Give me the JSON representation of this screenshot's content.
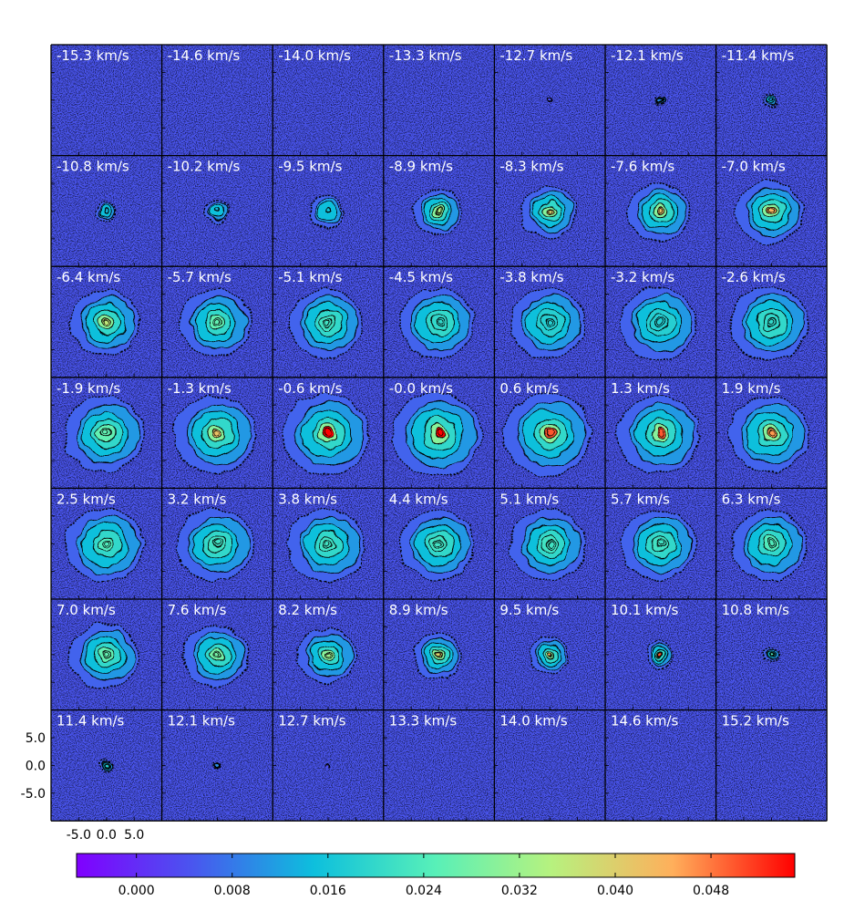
{
  "chart_data": {
    "type": "heatmap",
    "description_of_layout": "",
    "panel_labels": [
      [
        "-15.3 km/s",
        "-14.6 km/s",
        "-14.0 km/s",
        "-13.3 km/s",
        "-12.7 km/s",
        "-12.1 km/s",
        "-11.4 km/s"
      ],
      [
        "-10.8 km/s",
        "-10.2 km/s",
        "-9.5 km/s",
        "-8.9 km/s",
        "-8.3 km/s",
        "-7.6 km/s",
        "-7.0 km/s"
      ],
      [
        "-6.4 km/s",
        "-5.7 km/s",
        "-5.1 km/s",
        "-4.5 km/s",
        "-3.8 km/s",
        "-3.2 km/s",
        "-2.6 km/s"
      ],
      [
        "-1.9 km/s",
        "-1.3 km/s",
        "-0.6 km/s",
        "-0.0 km/s",
        "0.6 km/s",
        "1.3 km/s",
        "1.9 km/s"
      ],
      [
        "2.5 km/s",
        "3.2 km/s",
        "3.8 km/s",
        "4.4 km/s",
        "5.1 km/s",
        "5.7 km/s",
        "6.3 km/s"
      ],
      [
        "7.0 km/s",
        "7.6 km/s",
        "8.2 km/s",
        "8.9 km/s",
        "9.5 km/s",
        "10.1 km/s",
        "10.8 km/s"
      ],
      [
        "11.4 km/s",
        "12.1 km/s",
        "12.7 km/s",
        "13.3 km/s",
        "14.0 km/s",
        "14.6 km/s",
        "15.2 km/s"
      ]
    ],
    "velocities_kms": [
      [
        -15.3,
        -14.6,
        -14.0,
        -13.3,
        -12.7,
        -12.1,
        -11.4
      ],
      [
        -10.8,
        -10.2,
        -9.5,
        -8.9,
        -8.3,
        -7.6,
        -7.0
      ],
      [
        -6.4,
        -5.7,
        -5.1,
        -4.5,
        -3.8,
        -3.2,
        -2.6
      ],
      [
        -1.9,
        -1.3,
        -0.6,
        -0.0,
        0.6,
        1.3,
        1.9
      ],
      [
        2.5,
        3.2,
        3.8,
        4.4,
        5.1,
        5.7,
        6.3
      ],
      [
        7.0,
        7.6,
        8.2,
        8.9,
        9.5,
        10.1,
        10.8
      ],
      [
        11.4,
        12.1,
        12.7,
        13.3,
        14.0,
        14.6,
        15.2
      ]
    ],
    "emission_extent": [
      [
        0,
        0,
        0,
        0,
        0.02,
        0.1,
        0.16
      ],
      [
        0.22,
        0.26,
        0.38,
        0.52,
        0.6,
        0.66,
        0.72
      ],
      [
        0.74,
        0.76,
        0.78,
        0.8,
        0.8,
        0.82,
        0.84
      ],
      [
        0.86,
        0.88,
        0.92,
        0.96,
        0.94,
        0.88,
        0.86
      ],
      [
        0.84,
        0.82,
        0.82,
        0.8,
        0.8,
        0.8,
        0.8
      ],
      [
        0.74,
        0.7,
        0.62,
        0.52,
        0.42,
        0.3,
        0.18
      ],
      [
        0.14,
        0.08,
        0.03,
        0,
        0,
        0,
        0
      ]
    ],
    "peak_value": [
      [
        0.003,
        0.003,
        0.003,
        0.003,
        0.004,
        0.01,
        0.012
      ],
      [
        0.014,
        0.014,
        0.016,
        0.034,
        0.04,
        0.042,
        0.044
      ],
      [
        0.036,
        0.026,
        0.022,
        0.02,
        0.018,
        0.018,
        0.02
      ],
      [
        0.026,
        0.042,
        0.055,
        0.055,
        0.05,
        0.05,
        0.046
      ],
      [
        0.024,
        0.022,
        0.022,
        0.022,
        0.022,
        0.022,
        0.024
      ],
      [
        0.026,
        0.028,
        0.032,
        0.04,
        0.044,
        0.05,
        0.024
      ],
      [
        0.018,
        0.01,
        0.004,
        0.003,
        0.003,
        0.003,
        0.003
      ]
    ],
    "x_tick_labels": [
      "-5.0",
      "0.0",
      "5.0"
    ],
    "y_tick_labels": [
      "5.0",
      "0.0",
      "-5.0"
    ],
    "x_tick_values": [
      -5.0,
      0.0,
      5.0
    ],
    "y_tick_values": [
      5.0,
      0.0,
      -5.0
    ],
    "axis_range": [
      -10,
      10
    ],
    "colorbar": {
      "colormap": "rainbow",
      "range": [
        -0.005,
        0.055
      ],
      "tick_values": [
        0.0,
        0.008,
        0.016,
        0.024,
        0.032,
        0.04,
        0.048
      ],
      "tick_labels": [
        "0.000",
        "0.008",
        "0.016",
        "0.024",
        "0.032",
        "0.040",
        "0.048"
      ]
    },
    "contour_color": "#000000",
    "background_color": "#4a55ef",
    "grid": false
  }
}
